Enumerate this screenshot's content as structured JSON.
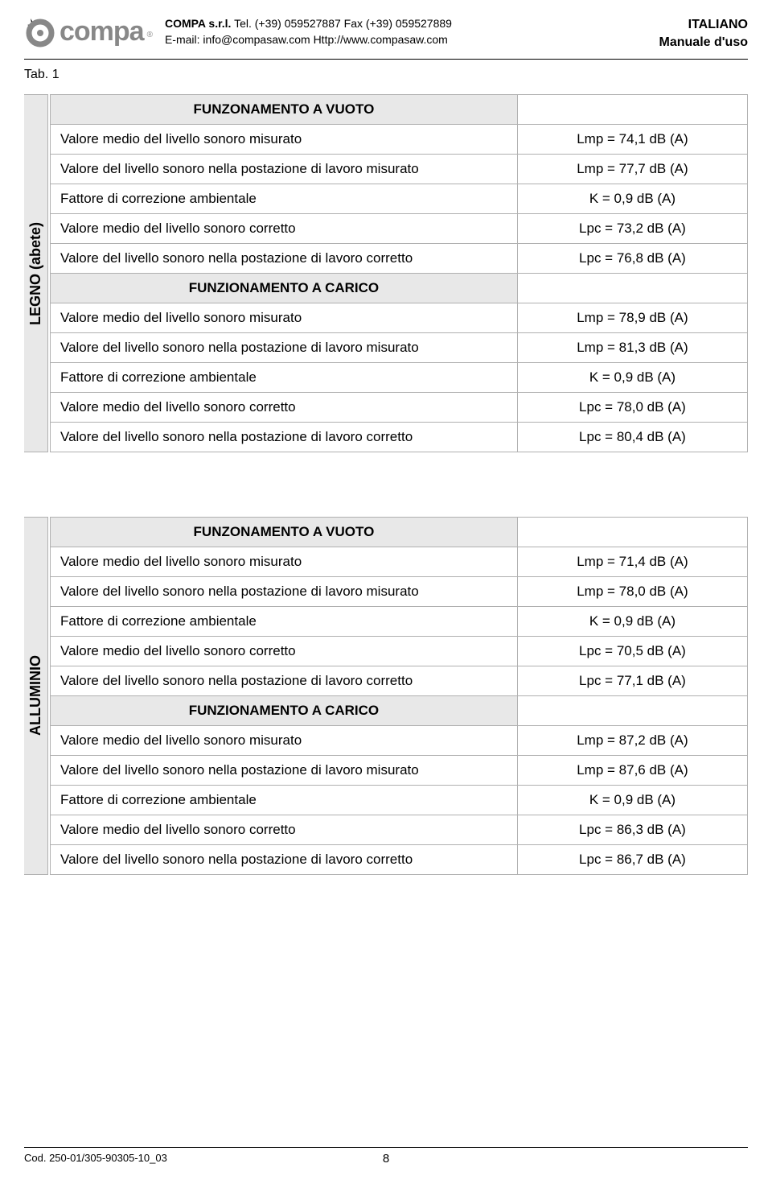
{
  "header": {
    "company_name": "COMPA s.r.l.",
    "contact": "Tel. (+39) 059527887 Fax (+39) 059527889",
    "email_web": "E-mail: info@compasaw.com Http://www.compasaw.com",
    "language": "ITALIANO",
    "doc_type": "Manuale d'uso",
    "logo_text": "compa",
    "logo_r": "®"
  },
  "tab_label": "Tab. 1",
  "tables": [
    {
      "material": "LEGNO (abete)",
      "groups": [
        {
          "title": "FUNZONAMENTO A VUOTO",
          "rows": [
            {
              "desc": "Valore medio del livello sonoro misurato",
              "value": "Lmp = 74,1 dB (A)"
            },
            {
              "desc": "Valore del livello sonoro nella postazione di lavoro misurato",
              "value": "Lmp = 77,7 dB (A)"
            },
            {
              "desc": "Fattore di correzione ambientale",
              "value": "K = 0,9 dB (A)"
            },
            {
              "desc": "Valore medio del livello sonoro corretto",
              "value": "Lpc = 73,2 dB (A)"
            },
            {
              "desc": "Valore del livello sonoro nella postazione di lavoro corretto",
              "value": "Lpc = 76,8 dB (A)"
            }
          ]
        },
        {
          "title": "FUNZIONAMENTO A CARICO",
          "rows": [
            {
              "desc": "Valore medio del livello sonoro misurato",
              "value": "Lmp = 78,9 dB (A)"
            },
            {
              "desc": "Valore del livello sonoro nella postazione di lavoro misurato",
              "value": "Lmp = 81,3 dB (A)"
            },
            {
              "desc": "Fattore di correzione ambientale",
              "value": "K = 0,9 dB (A)"
            },
            {
              "desc": "Valore medio del livello sonoro corretto",
              "value": "Lpc = 78,0 dB (A)"
            },
            {
              "desc": "Valore del livello sonoro nella postazione di lavoro corretto",
              "value": "Lpc = 80,4 dB (A)"
            }
          ]
        }
      ]
    },
    {
      "material": "ALLUMINIO",
      "groups": [
        {
          "title": "FUNZONAMENTO A VUOTO",
          "rows": [
            {
              "desc": "Valore medio del livello sonoro misurato",
              "value": "Lmp = 71,4 dB (A)"
            },
            {
              "desc": "Valore del livello sonoro nella postazione di lavoro misurato",
              "value": "Lmp = 78,0 dB (A)"
            },
            {
              "desc": "Fattore di correzione ambientale",
              "value": "K = 0,9 dB (A)"
            },
            {
              "desc": "Valore medio del livello sonoro corretto",
              "value": "Lpc = 70,5 dB (A)"
            },
            {
              "desc": "Valore del livello sonoro nella postazione di lavoro corretto",
              "value": "Lpc = 77,1 dB (A)"
            }
          ]
        },
        {
          "title": "FUNZIONAMENTO A CARICO",
          "rows": [
            {
              "desc": "Valore medio del livello sonoro misurato",
              "value": "Lmp = 87,2 dB (A)"
            },
            {
              "desc": "Valore del livello sonoro nella postazione di lavoro misurato",
              "value": "Lmp = 87,6 dB (A)"
            },
            {
              "desc": "Fattore di correzione ambientale",
              "value": "K = 0,9 dB (A)"
            },
            {
              "desc": "Valore medio del livello sonoro corretto",
              "value": "Lpc = 86,3 dB (A)"
            },
            {
              "desc": "Valore del livello sonoro nella postazione di lavoro corretto",
              "value": "Lpc = 86,7 dB (A)"
            }
          ]
        }
      ]
    }
  ],
  "footer": {
    "code": "Cod. 250-01/305-90305-10_03",
    "page": "8"
  }
}
